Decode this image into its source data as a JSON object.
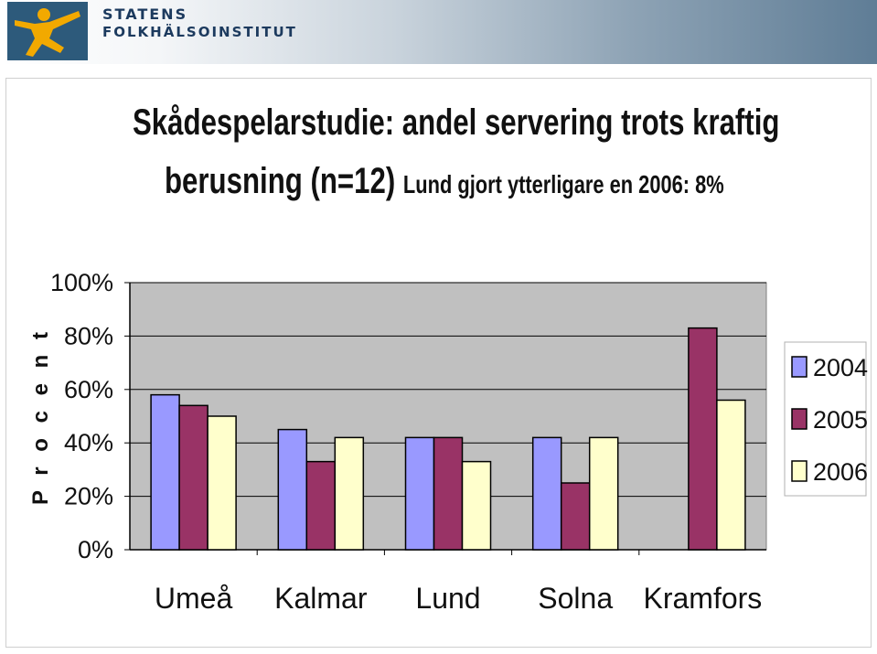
{
  "header": {
    "org_line1": "STATENS",
    "org_line2": "FOLKHÄLSOINSTITUT",
    "logo_icon": "running-figure-logo",
    "logo_color": "#f2a900",
    "logo_bg": "#2d5a7b"
  },
  "title": {
    "line1": "Skådespelarstudie: andel servering trots kraftig",
    "line2_main": "berusning (n=12)",
    "line2_note": "Lund gjort ytterligare en 2006: 8%"
  },
  "chart_data": {
    "type": "bar",
    "title": "",
    "ylabel": "P r o c e n t",
    "xlabel": "",
    "categories": [
      "Umeå",
      "Kalmar",
      "Lund",
      "Solna",
      "Kramfors"
    ],
    "series": [
      {
        "name": "2004",
        "color": "#9999ff",
        "values": [
          58,
          45,
          42,
          42,
          null
        ]
      },
      {
        "name": "2005",
        "color": "#993366",
        "values": [
          54,
          33,
          42,
          25,
          83
        ]
      },
      {
        "name": "2006",
        "color": "#ffffcc",
        "values": [
          50,
          42,
          33,
          42,
          56
        ]
      }
    ],
    "ylim": [
      0,
      100
    ],
    "yticks": [
      "0%",
      "20%",
      "40%",
      "60%",
      "80%",
      "100%"
    ],
    "ytick_values": [
      0,
      20,
      40,
      60,
      80,
      100
    ],
    "grid": true,
    "plot_background": "#c0c0c0",
    "legend": "right"
  }
}
